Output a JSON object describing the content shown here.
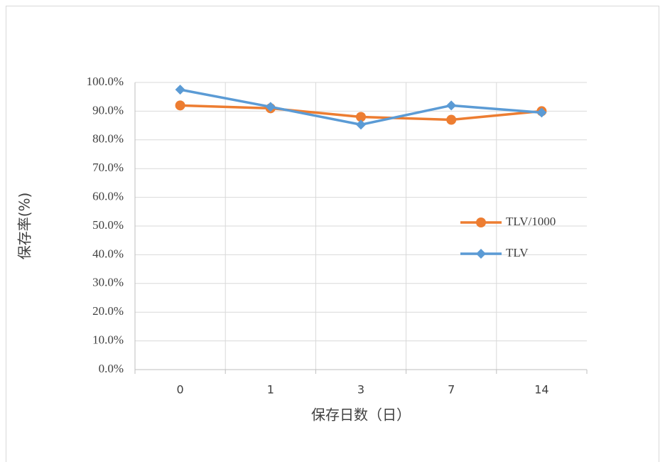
{
  "chart_data": {
    "type": "line",
    "x_label": "保存日数（日）",
    "y_label": "保存率(%)",
    "categories": [
      "0",
      "1",
      "3",
      "7",
      "14"
    ],
    "series": [
      {
        "name": "TLV/1000",
        "color": "#ed7d31",
        "marker": "circle",
        "values": [
          92.0,
          91.0,
          88.0,
          87.0,
          90.0
        ]
      },
      {
        "name": "TLV",
        "color": "#5b9bd5",
        "marker": "diamond",
        "values": [
          97.5,
          91.5,
          85.3,
          92.0,
          89.5
        ]
      }
    ],
    "ylim": [
      0,
      100
    ],
    "yticks": [
      {
        "value": 0,
        "label": "0.0%"
      },
      {
        "value": 10,
        "label": "10.0%"
      },
      {
        "value": 20,
        "label": "20.0%"
      },
      {
        "value": 30,
        "label": "30.0%"
      },
      {
        "value": 40,
        "label": "40.0%"
      },
      {
        "value": 50,
        "label": "50.0%"
      },
      {
        "value": 60,
        "label": "60.0%"
      },
      {
        "value": 70,
        "label": "70.0%"
      },
      {
        "value": 80,
        "label": "80.0%"
      },
      {
        "value": 90,
        "label": "90.0%"
      },
      {
        "value": 100,
        "label": "100.0%"
      }
    ],
    "grid": true,
    "legend": "right"
  }
}
